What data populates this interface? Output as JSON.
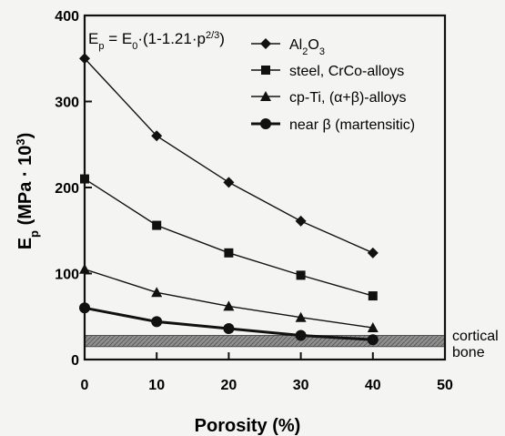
{
  "chart_data": {
    "type": "line",
    "formula": "Ep = E0·(1-1.21·p^(2/3))",
    "xlabel": "Porosity (%)",
    "ylabel": "Ep (MPa · 10³)",
    "x": [
      0,
      10,
      20,
      30,
      40
    ],
    "xlim": [
      0,
      50
    ],
    "ylim": [
      0,
      400
    ],
    "xticks": [
      0,
      10,
      20,
      30,
      40,
      50
    ],
    "yticks": [
      0,
      100,
      200,
      300,
      400
    ],
    "grid": false,
    "legend_position": "top-right",
    "series": [
      {
        "name": "Al2O3",
        "marker": "diamond",
        "values": [
          350,
          260,
          206,
          161,
          124
        ]
      },
      {
        "name": "steel, CrCo-alloys",
        "marker": "square",
        "values": [
          210,
          156,
          124,
          98,
          74
        ]
      },
      {
        "name": "cp-Ti, (α+β)-alloys",
        "marker": "triangle",
        "values": [
          105,
          78,
          62,
          49,
          37
        ]
      },
      {
        "name": "near β (martensitic)",
        "marker": "circle",
        "values": [
          60,
          44,
          36,
          28,
          23
        ]
      }
    ],
    "band": {
      "label_line1": "cortical",
      "label_line2": "bone",
      "range": [
        15,
        28
      ]
    }
  }
}
